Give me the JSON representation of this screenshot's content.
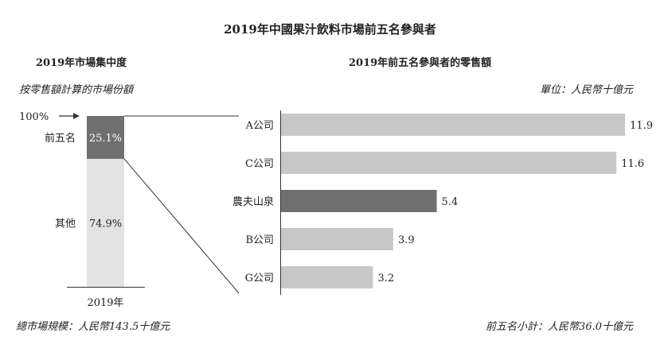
{
  "main_title": "2019年中國果汁飲料市場前五名參與者",
  "colors": {
    "dark": "#6f6f6f",
    "light": "#c8c8c8",
    "lighter": "#e3e3e3",
    "line": "#333333"
  },
  "chart_data": [
    {
      "type": "bar",
      "stacked": true,
      "title": "2019年市場集中度",
      "subtitle": "按零售額計算的市場份額",
      "top_marker": "100%",
      "categories": [
        "2019年"
      ],
      "series": [
        {
          "name": "前五名",
          "values": [
            25.1
          ],
          "label": "25.1%",
          "color": "#6f6f6f"
        },
        {
          "name": "其他",
          "values": [
            74.9
          ],
          "label": "74.9%",
          "color": "#e3e3e3"
        }
      ],
      "ylim": [
        0,
        100
      ],
      "footnote": "總市場規模：人民幣143.5十億元"
    },
    {
      "type": "bar",
      "orientation": "horizontal",
      "title": "2019年前五名參與者的零售額",
      "unit": "單位：人民幣十億元",
      "categories": [
        "A公司",
        "C公司",
        "農夫山泉",
        "B公司",
        "G公司"
      ],
      "values": [
        11.9,
        11.6,
        5.4,
        3.9,
        3.2
      ],
      "value_labels": [
        "11.9",
        "11.6",
        "5.4",
        "3.9",
        "3.2"
      ],
      "highlight": "農夫山泉",
      "xlim": [
        0,
        12.5
      ],
      "footnote": "前五名小計：人民幣36.0十億元"
    }
  ]
}
